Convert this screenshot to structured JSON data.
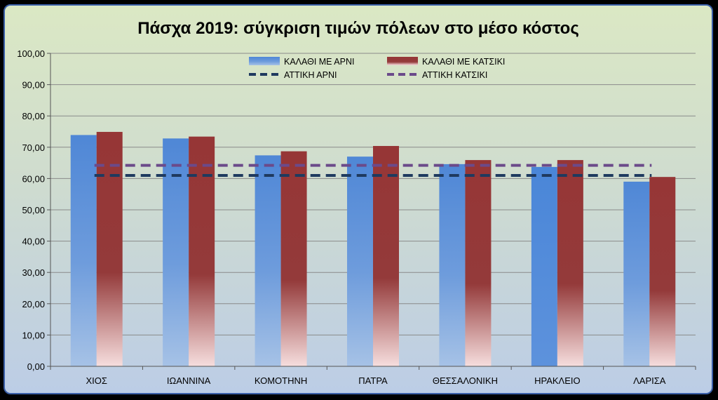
{
  "chart_data": {
    "type": "bar",
    "title": "Πάσχα 2019: σύγκριση τιμών πόλεων στο μέσο κόστος",
    "categories": [
      "ΧΙΟΣ",
      "ΙΩΑΝΝΙΝΑ",
      "ΚΟΜΟΤΗΝΗ",
      "ΠΑΤΡΑ",
      "ΘΕΣΣΑΛΟΝΙΚΗ",
      "ΗΡΑΚΛΕΙΟ",
      "ΛΑΡΙΣΑ"
    ],
    "series": [
      {
        "name": "ΚΑΛΑΘΙ ΜΕ ΑΡΝΙ",
        "kind": "bar",
        "color": "#4f87d6",
        "values": [
          73.9,
          72.8,
          67.4,
          67.0,
          64.6,
          63.7,
          59.0
        ]
      },
      {
        "name": "ΚΑΛΑΘΙ ΜΕ ΚΑΤΣΙΚΙ",
        "kind": "bar",
        "color": "#963636",
        "values": [
          74.9,
          73.4,
          68.7,
          70.4,
          65.9,
          65.9,
          60.5
        ]
      },
      {
        "name": "ΑΤΤΙΚΗ ΑΡΝΙ",
        "kind": "dashed-line",
        "color": "#1f3a5f",
        "values": [
          61.0,
          61.0,
          61.0,
          61.0,
          61.0,
          61.0,
          61.0
        ]
      },
      {
        "name": "ΑΤΤΙΚΗ ΚΑΤΣΙΚΙ",
        "kind": "dashed-line",
        "color": "#6b4a8a",
        "values": [
          64.2,
          64.2,
          64.2,
          64.2,
          64.2,
          64.2,
          64.2
        ]
      }
    ],
    "yticks": [
      "0,00",
      "10,00",
      "20,00",
      "30,00",
      "40,00",
      "50,00",
      "60,00",
      "70,00",
      "80,00",
      "90,00",
      "100,00"
    ],
    "ylim": [
      0,
      100
    ],
    "grid": true,
    "legend_position": "top"
  }
}
